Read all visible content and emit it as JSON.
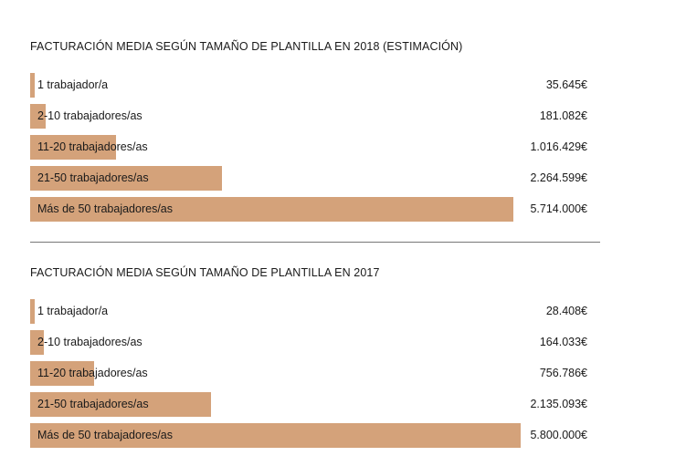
{
  "chart_data": [
    {
      "type": "bar",
      "orientation": "horizontal",
      "title": "FACTURACIÓN MEDIA SEGÚN TAMAÑO DE PLANTILLA EN 2018 (ESTIMACIÓN)",
      "categories": [
        "1 trabajador/a",
        "2-10 trabajadores/as",
        "11-20 trabajadores/as",
        "21-50 trabajadores/as",
        "Más de 50 trabajadores/as"
      ],
      "values": [
        35645,
        181082,
        1016429,
        2264599,
        5714000
      ],
      "value_labels": [
        "35.645€",
        "181.082€",
        "1.016.429€",
        "2.264.599€",
        "5.714.000€"
      ],
      "color": "#d4a27a",
      "grid": false
    },
    {
      "type": "bar",
      "orientation": "horizontal",
      "title": "FACTURACIÓN MEDIA SEGÚN TAMAÑO DE PLANTILLA EN 2017",
      "categories": [
        "1 trabajador/a",
        "2-10 trabajadores/as",
        "11-20 trabajadores/as",
        "21-50 trabajadores/as",
        "Más de 50 trabajadores/as"
      ],
      "values": [
        28408,
        164033,
        756786,
        2135093,
        5800000
      ],
      "value_labels": [
        "28.408€",
        "164.033€",
        "756.786€",
        "2.135.093€",
        "5.800.000€"
      ],
      "color": "#d4a27a",
      "grid": false
    }
  ]
}
